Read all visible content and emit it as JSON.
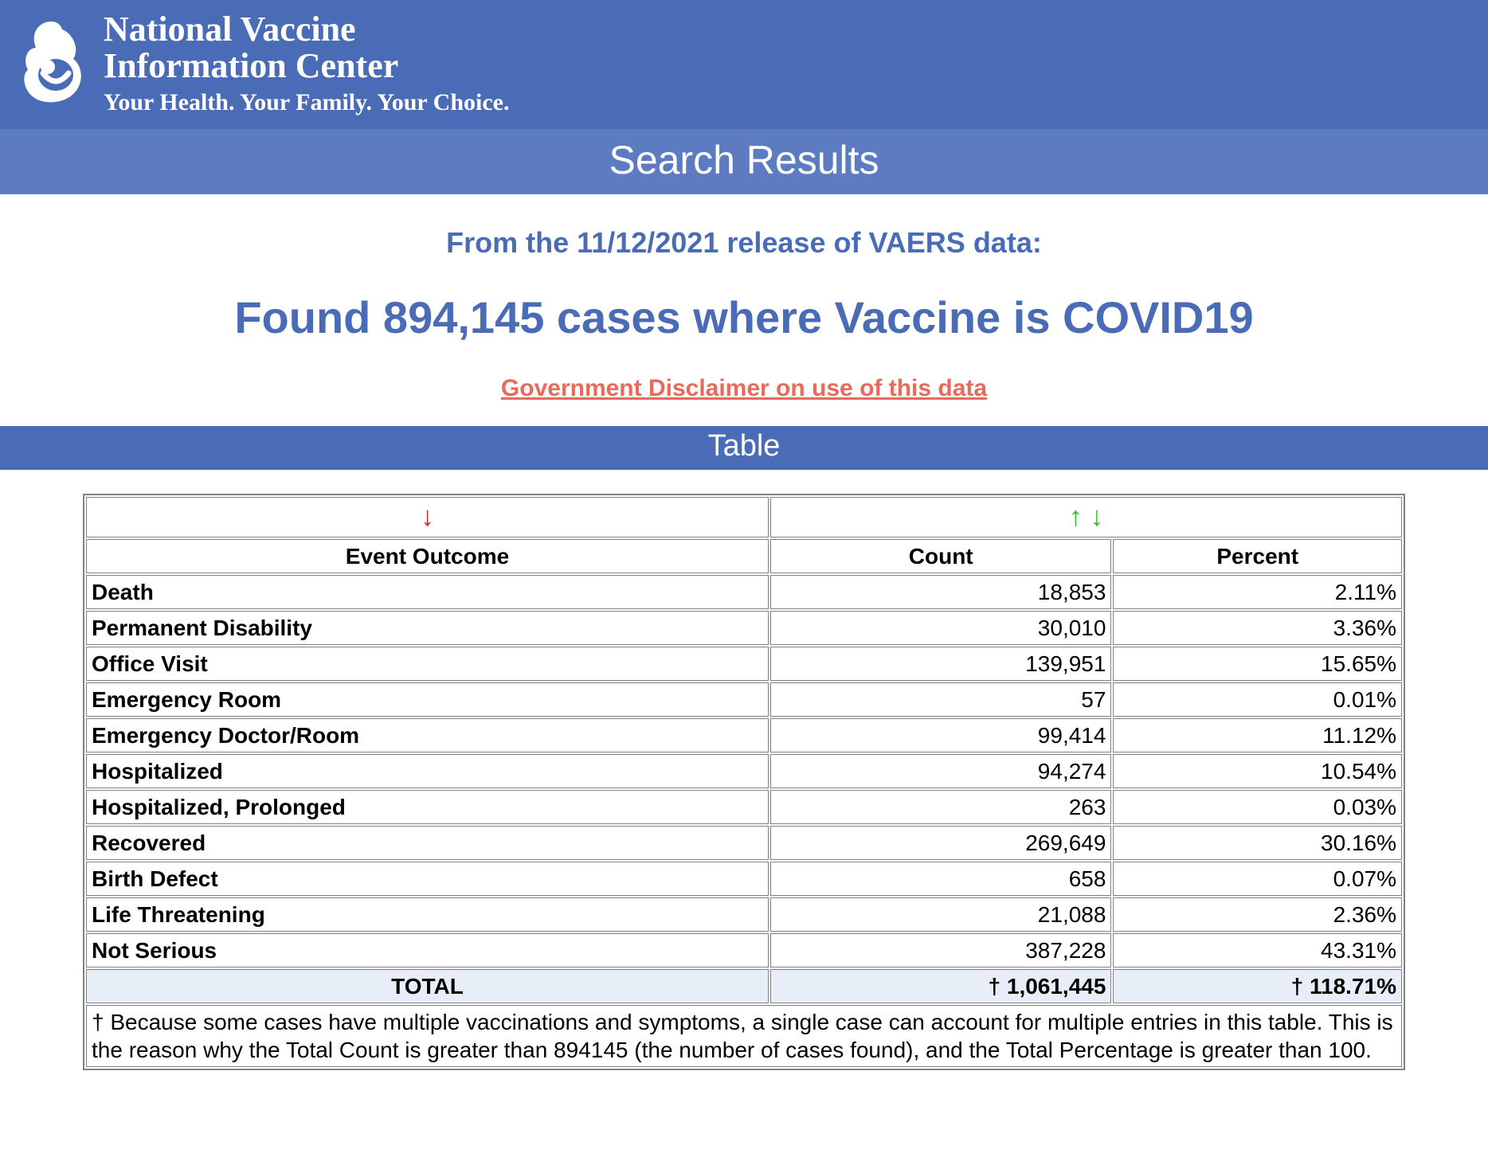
{
  "colors": {
    "header_bg": "#4a6bb5",
    "subbar_bg": "#5c7bc0",
    "brand_text": "#4a6bb5",
    "disclaimer": "#e96a5b",
    "total_row_bg": "#e8eef8",
    "arrow_red": "#d42020",
    "arrow_green": "#2bbd2b",
    "table_border": "#808080"
  },
  "org": {
    "title_line1": "National Vaccine",
    "title_line2": "Information Center",
    "tagline": "Your Health. Your Family. Your Choice."
  },
  "search_results_label": "Search Results",
  "release_line": "From the 11/12/2021 release of VAERS data:",
  "found_line": "Found 894,145 cases where Vaccine is COVID19",
  "disclaimer_link_text": "Government Disclaimer on use of this data",
  "table_label": "Table",
  "sort_icons": {
    "col1": "↓",
    "col2": "↑  ↓"
  },
  "table": {
    "columns": [
      "Event Outcome",
      "Count",
      "Percent"
    ],
    "column_widths_pct": [
      52,
      26,
      22
    ],
    "rows": [
      {
        "outcome": "Death",
        "count": "18,853",
        "percent": "2.11%"
      },
      {
        "outcome": "Permanent Disability",
        "count": "30,010",
        "percent": "3.36%"
      },
      {
        "outcome": "Office Visit",
        "count": "139,951",
        "percent": "15.65%"
      },
      {
        "outcome": "Emergency Room",
        "count": "57",
        "percent": "0.01%"
      },
      {
        "outcome": "Emergency Doctor/Room",
        "count": "99,414",
        "percent": "11.12%"
      },
      {
        "outcome": "Hospitalized",
        "count": "94,274",
        "percent": "10.54%"
      },
      {
        "outcome": "Hospitalized, Prolonged",
        "count": "263",
        "percent": "0.03%"
      },
      {
        "outcome": "Recovered",
        "count": "269,649",
        "percent": "30.16%"
      },
      {
        "outcome": "Birth Defect",
        "count": "658",
        "percent": "0.07%"
      },
      {
        "outcome": "Life Threatening",
        "count": "21,088",
        "percent": "2.36%"
      },
      {
        "outcome": "Not Serious",
        "count": "387,228",
        "percent": "43.31%"
      }
    ],
    "total": {
      "label": "TOTAL",
      "count": "† 1,061,445",
      "percent": "† 118.71%"
    },
    "footnote": "† Because some cases have multiple vaccinations and symptoms, a single case can account for multiple entries in this table. This is the reason why the Total Count is greater than 894145 (the number of cases found), and the Total Percentage is greater than 100."
  }
}
